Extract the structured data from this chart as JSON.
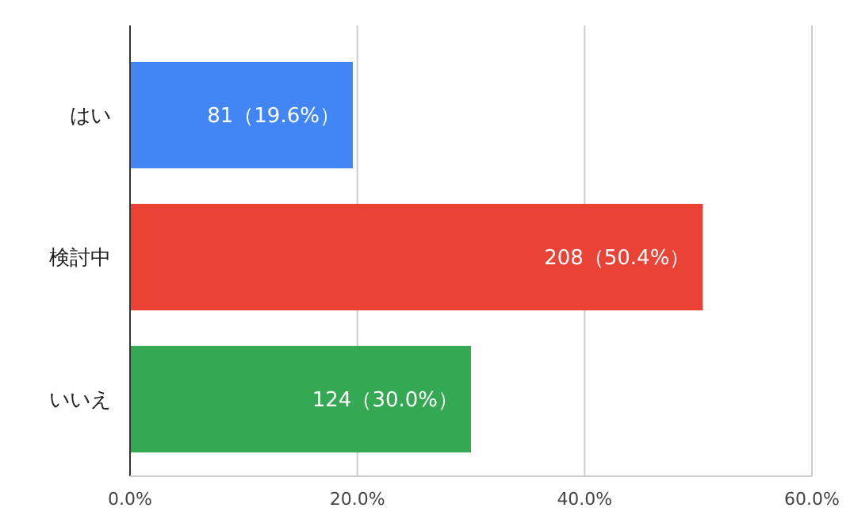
{
  "chart_data": {
    "type": "bar",
    "orientation": "horizontal",
    "categories": [
      "はい",
      "検討中",
      "いいえ"
    ],
    "values": [
      19.6,
      50.4,
      30.0
    ],
    "colors": [
      "#4285f4",
      "#ea4335",
      "#34a853"
    ],
    "value_labels": [
      "81（19.6%）",
      "208（50.4%）",
      "124（30.0%）"
    ],
    "xlim": [
      0,
      60
    ],
    "xticks": [
      {
        "value": 0,
        "label": "0.0%"
      },
      {
        "value": 20,
        "label": "20.0%"
      },
      {
        "value": 40,
        "label": "40.0%"
      },
      {
        "value": 60,
        "label": "60.0%"
      }
    ],
    "grid": "x"
  }
}
